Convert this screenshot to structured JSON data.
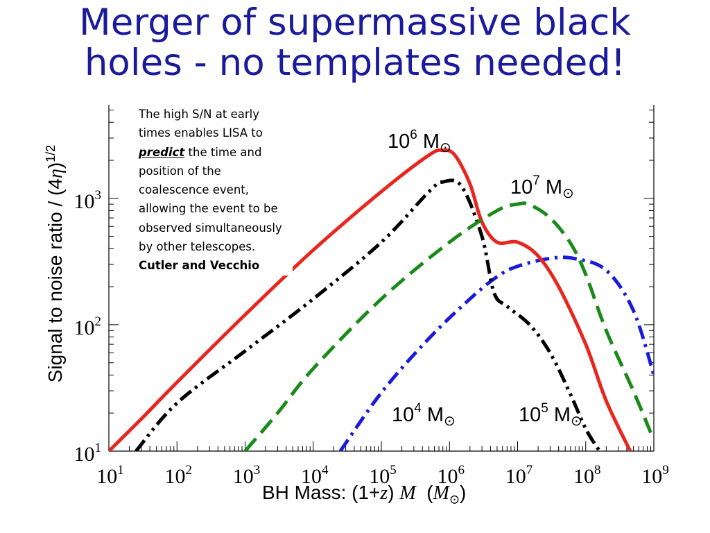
{
  "slide": {
    "title_line1": "Merger of supermassive black",
    "title_line2": "holes - no templates needed!"
  },
  "note": {
    "part1": "The high S/N at early times enables LISA to",
    "emphasis": "predict",
    "part2": "the time and position of the coalescence event, allowing the event to be observed simultaneously by other telescopes.",
    "citation": "Cutler and Vecchio"
  },
  "chart_data": {
    "type": "line",
    "xscale": "log",
    "yscale": "log",
    "xlim": [
      10,
      1000000000
    ],
    "ylim": [
      10,
      5500
    ],
    "xlabel": {
      "main": "BH Mass: (1+",
      "z": "z",
      "close": ")",
      "M": "M",
      "open_unit": "(",
      "unit_M": "M",
      "sun": "⊙",
      "close_unit": ")"
    },
    "ylabel": {
      "main": "Signal to noise ratio",
      "slash": "/ (4",
      "eta": "η",
      "close": ")",
      "exp": "1/2"
    },
    "x_ticks": [
      {
        "base": "10",
        "exp": "1",
        "value": 10
      },
      {
        "base": "10",
        "exp": "2",
        "value": 100
      },
      {
        "base": "10",
        "exp": "3",
        "value": 1000
      },
      {
        "base": "10",
        "exp": "4",
        "value": 10000
      },
      {
        "base": "10",
        "exp": "5",
        "value": 100000
      },
      {
        "base": "10",
        "exp": "6",
        "value": 1000000
      },
      {
        "base": "10",
        "exp": "7",
        "value": 10000000
      },
      {
        "base": "10",
        "exp": "8",
        "value": 100000000
      },
      {
        "base": "10",
        "exp": "9",
        "value": 1000000000
      }
    ],
    "y_ticks": [
      {
        "base": "10",
        "exp": "1",
        "value": 10
      },
      {
        "base": "10",
        "exp": "2",
        "value": 100
      },
      {
        "base": "10",
        "exp": "3",
        "value": 1000
      }
    ],
    "series": [
      {
        "name": "10^4 M⊙",
        "label_base": "10",
        "label_exp": "4",
        "label_unit": "M",
        "label_sun": "⊙",
        "color": "#1a1adc",
        "dash": "dashdot",
        "points": [
          [
            25000,
            10
          ],
          [
            100000,
            29
          ],
          [
            500000,
            78
          ],
          [
            2000000,
            160
          ],
          [
            5000000,
            240
          ],
          [
            10000000,
            290
          ],
          [
            30000000,
            335
          ],
          [
            70000000,
            333
          ],
          [
            200000000,
            270
          ],
          [
            500000000,
            130
          ],
          [
            1000000000,
            40
          ]
        ]
      },
      {
        "name": "10^5 M⊙",
        "label_base": "10",
        "label_exp": "5",
        "label_unit": "M",
        "label_sun": "⊙",
        "color": "#000000",
        "dash": "dashdotdot",
        "points": [
          [
            25,
            10
          ],
          [
            100,
            24
          ],
          [
            1000,
            62
          ],
          [
            10000,
            160
          ],
          [
            100000,
            450
          ],
          [
            500000,
            1130
          ],
          [
            800000,
            1350
          ],
          [
            1500000,
            1250
          ],
          [
            3000000,
            500
          ],
          [
            4500000,
            180
          ],
          [
            7000000,
            140
          ],
          [
            15000000,
            100
          ],
          [
            30000000,
            60
          ],
          [
            60000000,
            28
          ],
          [
            100000000,
            15
          ],
          [
            160000000,
            10
          ]
        ]
      },
      {
        "name": "10^6 M⊙",
        "label_base": "10",
        "label_exp": "6",
        "label_unit": "M",
        "label_sun": "⊙",
        "color": "#e8261e",
        "dash": "solid",
        "points": [
          [
            10,
            10
          ],
          [
            30,
            18
          ],
          [
            100,
            35
          ],
          [
            1000,
            120
          ],
          [
            10000,
            390
          ],
          [
            100000,
            1130
          ],
          [
            500000,
            2200
          ],
          [
            800000,
            2400
          ],
          [
            1200000,
            2200
          ],
          [
            2000000,
            1300
          ],
          [
            3000000,
            650
          ],
          [
            5000000,
            450
          ],
          [
            10000000,
            450
          ],
          [
            20000000,
            350
          ],
          [
            40000000,
            200
          ],
          [
            100000000,
            70
          ],
          [
            200000000,
            25
          ],
          [
            450000000,
            10
          ]
        ]
      },
      {
        "name": "10^7 M⊙",
        "label_base": "10",
        "label_exp": "7",
        "label_unit": "M",
        "label_sun": "⊙",
        "color": "#1a8a1a",
        "dash": "dashed",
        "points": [
          [
            1000,
            10
          ],
          [
            3000,
            20
          ],
          [
            10000,
            45
          ],
          [
            100000,
            160
          ],
          [
            1000000,
            450
          ],
          [
            5000000,
            800
          ],
          [
            10000000,
            900
          ],
          [
            15000000,
            890
          ],
          [
            30000000,
            700
          ],
          [
            60000000,
            440
          ],
          [
            100000000,
            250
          ],
          [
            200000000,
            90
          ],
          [
            500000000,
            30
          ],
          [
            900000000,
            14
          ]
        ]
      }
    ]
  }
}
